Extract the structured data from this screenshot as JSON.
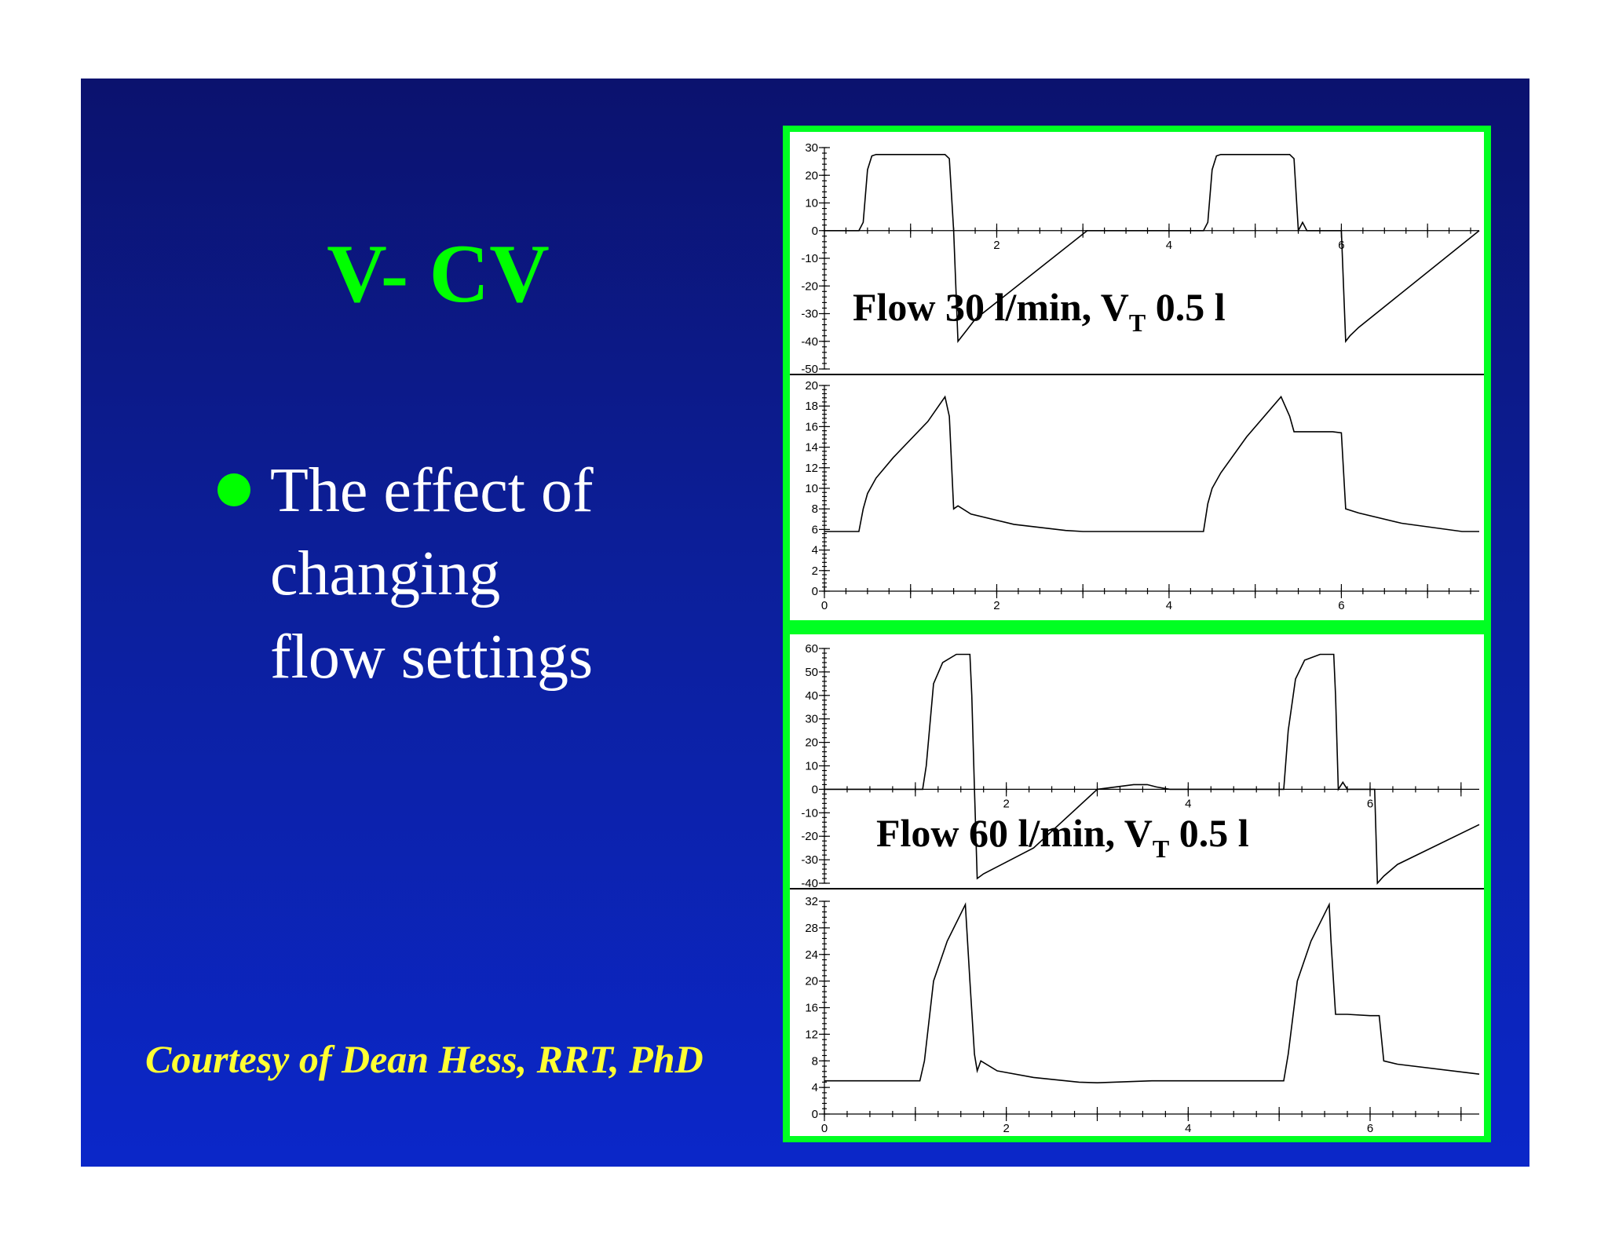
{
  "slide": {
    "title": "V- CV",
    "bullet_lines": [
      "The effect of",
      "changing",
      "flow settings"
    ],
    "credit": "Courtesy of Dean Hess, RRT, PhD",
    "colors": {
      "background_top": "#0b126e",
      "background_bottom": "#0b27c9",
      "title": "#00ff00",
      "bullet": "#00ff00",
      "credit": "#ffff33",
      "figure_border": "#00ff22"
    }
  },
  "chart_data": [
    {
      "type": "line",
      "panel": "flow",
      "caption_parts": [
        "Flow 30 l/min, V",
        "T",
        " 0.5 l"
      ],
      "xlim": [
        0,
        7.6
      ],
      "ylim": [
        -50,
        30
      ],
      "yticks": [
        30,
        20,
        10,
        0,
        -10,
        -20,
        -30,
        -40,
        -50
      ],
      "xticks": [
        2,
        4,
        6
      ],
      "x_tick_labels_at_zero_line": true,
      "series": [
        {
          "x": [
            0,
            0.4,
            0.45,
            0.5,
            0.55,
            0.6,
            1.4,
            1.45,
            1.5,
            1.55,
            1.6,
            1.65,
            1.75,
            3.05,
            4.4,
            4.45,
            4.5,
            4.55,
            4.6,
            5.4,
            5.45,
            5.5,
            5.55,
            5.6,
            5.65,
            5.7,
            6.0,
            6.05,
            6.1,
            6.2,
            7.6
          ],
          "y": [
            0,
            0,
            3,
            22,
            27,
            27.5,
            27.5,
            26,
            0,
            -40,
            -38,
            -36,
            -32,
            0,
            0,
            3,
            22,
            27,
            27.5,
            27.5,
            26,
            0,
            3,
            0,
            0,
            0,
            0,
            -40,
            -38,
            -35,
            0
          ]
        }
      ]
    },
    {
      "type": "line",
      "panel": "pressure",
      "xlim": [
        0,
        7.6
      ],
      "ylim": [
        0,
        20
      ],
      "yticks": [
        20,
        18,
        16,
        14,
        12,
        10,
        8,
        6,
        4,
        2,
        0
      ],
      "xticks": [
        0,
        2,
        4,
        6
      ],
      "series": [
        {
          "x": [
            0,
            0.4,
            0.45,
            0.5,
            0.6,
            0.8,
            1.2,
            1.4,
            1.45,
            1.5,
            1.55,
            1.7,
            2.2,
            2.8,
            3.0,
            4.4,
            4.45,
            4.5,
            4.6,
            4.9,
            5.3,
            5.4,
            5.45,
            5.9,
            6.0,
            6.05,
            6.2,
            6.7,
            7.4,
            7.6
          ],
          "y": [
            5.8,
            5.8,
            8,
            9.5,
            11,
            13,
            16.5,
            18.9,
            17,
            8,
            8.3,
            7.5,
            6.5,
            5.9,
            5.8,
            5.8,
            8.5,
            10,
            11.5,
            15,
            18.9,
            17,
            15.5,
            15.5,
            15.4,
            8,
            7.6,
            6.6,
            5.8,
            5.8
          ]
        }
      ]
    },
    {
      "type": "line",
      "panel": "flow",
      "caption_parts": [
        "Flow 60 l/min, V",
        "T",
        " 0.5 l"
      ],
      "xlim": [
        0,
        7.2
      ],
      "ylim": [
        -40,
        60
      ],
      "yticks": [
        60,
        50,
        40,
        30,
        20,
        10,
        0,
        -10,
        -20,
        -30,
        -40
      ],
      "xticks": [
        2,
        4,
        6
      ],
      "x_tick_labels_at_zero_line": true,
      "series": [
        {
          "x": [
            0,
            1.08,
            1.12,
            1.2,
            1.3,
            1.45,
            1.6,
            1.62,
            1.65,
            1.68,
            1.75,
            1.9,
            2.3,
            3.0,
            3.4,
            3.55,
            3.65,
            3.8,
            5.05,
            5.1,
            5.18,
            5.28,
            5.45,
            5.6,
            5.62,
            5.65,
            5.7,
            5.75,
            6.05,
            6.08,
            6.15,
            6.3,
            7.2
          ],
          "y": [
            0,
            0,
            10,
            45,
            54,
            57.5,
            57.5,
            40,
            0,
            -38,
            -36,
            -33,
            -25,
            0,
            2,
            2,
            1,
            0,
            0,
            25,
            47,
            55,
            57.5,
            57.5,
            40,
            0,
            3,
            0,
            0,
            -40,
            -37,
            -32,
            -15
          ]
        }
      ]
    },
    {
      "type": "line",
      "panel": "pressure",
      "xlim": [
        0,
        7.2
      ],
      "ylim": [
        0,
        32
      ],
      "yticks": [
        32,
        28,
        24,
        20,
        16,
        12,
        8,
        4,
        0
      ],
      "xticks": [
        0,
        2,
        4,
        6
      ],
      "series": [
        {
          "x": [
            0,
            1.05,
            1.1,
            1.2,
            1.35,
            1.55,
            1.55,
            1.6,
            1.65,
            1.68,
            1.72,
            1.9,
            2.3,
            2.8,
            3.0,
            3.6,
            5.05,
            5.1,
            5.2,
            5.35,
            5.55,
            5.57,
            5.62,
            5.75,
            6.0,
            6.1,
            6.15,
            6.3,
            7.2
          ],
          "y": [
            5,
            5,
            8,
            20,
            26,
            31.5,
            31.5,
            20,
            9,
            6.5,
            8,
            6.5,
            5.5,
            4.8,
            4.7,
            5,
            5,
            9,
            20,
            26,
            31.5,
            26,
            15,
            15,
            14.8,
            14.8,
            8,
            7.5,
            6
          ]
        }
      ]
    }
  ]
}
